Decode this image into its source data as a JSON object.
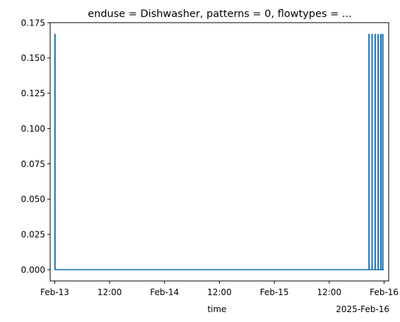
{
  "chart_data": {
    "type": "line",
    "title": "enduse = Dishwasher, patterns = 0, flowtypes = ...",
    "xlabel": "time",
    "ylabel": "",
    "x_offset_label": "2025-Feb-16",
    "x_range": [
      "2025-02-12T23:00",
      "2025-02-16T01:00"
    ],
    "ylim": [
      -0.008,
      0.175
    ],
    "x_ticks": [
      {
        "value": "2025-02-13T00:00",
        "label": "Feb-13"
      },
      {
        "value": "2025-02-13T12:00",
        "label": "12:00"
      },
      {
        "value": "2025-02-14T00:00",
        "label": "Feb-14"
      },
      {
        "value": "2025-02-14T12:00",
        "label": "12:00"
      },
      {
        "value": "2025-02-15T00:00",
        "label": "Feb-15"
      },
      {
        "value": "2025-02-15T12:00",
        "label": "12:00"
      },
      {
        "value": "2025-02-16T00:00",
        "label": "Feb-16"
      }
    ],
    "y_ticks": [
      {
        "value": 0.0,
        "label": "0.000"
      },
      {
        "value": 0.025,
        "label": "0.025"
      },
      {
        "value": 0.05,
        "label": "0.050"
      },
      {
        "value": 0.075,
        "label": "0.075"
      },
      {
        "value": 0.1,
        "label": "0.100"
      },
      {
        "value": 0.125,
        "label": "0.125"
      },
      {
        "value": 0.15,
        "label": "0.150"
      },
      {
        "value": 0.175,
        "label": "0.175"
      }
    ],
    "grid": false,
    "legend": "none",
    "series": [
      {
        "color": "#1f77b4",
        "points": [
          {
            "x": "2025-02-13T00:00",
            "y": 0.0
          },
          {
            "x": "2025-02-13T00:00",
            "y": 0.1667
          },
          {
            "x": "2025-02-13T00:05",
            "y": 0.1667
          },
          {
            "x": "2025-02-13T00:05",
            "y": 0.0
          },
          {
            "x": "2025-02-15T20:40",
            "y": 0.0
          },
          {
            "x": "2025-02-15T20:40",
            "y": 0.1667
          },
          {
            "x": "2025-02-15T20:45",
            "y": 0.1667
          },
          {
            "x": "2025-02-15T20:45",
            "y": 0.0
          },
          {
            "x": "2025-02-15T21:20",
            "y": 0.0
          },
          {
            "x": "2025-02-15T21:20",
            "y": 0.1667
          },
          {
            "x": "2025-02-15T21:25",
            "y": 0.1667
          },
          {
            "x": "2025-02-15T21:25",
            "y": 0.0
          },
          {
            "x": "2025-02-15T22:00",
            "y": 0.0
          },
          {
            "x": "2025-02-15T22:00",
            "y": 0.1667
          },
          {
            "x": "2025-02-15T22:05",
            "y": 0.1667
          },
          {
            "x": "2025-02-15T22:05",
            "y": 0.0
          },
          {
            "x": "2025-02-15T22:40",
            "y": 0.0
          },
          {
            "x": "2025-02-15T22:40",
            "y": 0.1667
          },
          {
            "x": "2025-02-15T22:45",
            "y": 0.1667
          },
          {
            "x": "2025-02-15T22:45",
            "y": 0.0
          },
          {
            "x": "2025-02-15T23:15",
            "y": 0.0
          },
          {
            "x": "2025-02-15T23:15",
            "y": 0.1667
          },
          {
            "x": "2025-02-15T23:20",
            "y": 0.1667
          },
          {
            "x": "2025-02-15T23:20",
            "y": 0.0
          },
          {
            "x": "2025-02-15T23:40",
            "y": 0.0
          },
          {
            "x": "2025-02-15T23:40",
            "y": 0.1667
          },
          {
            "x": "2025-02-15T23:45",
            "y": 0.1667
          },
          {
            "x": "2025-02-15T23:45",
            "y": 0.0
          },
          {
            "x": "2025-02-16T00:00",
            "y": 0.0
          }
        ]
      }
    ]
  }
}
